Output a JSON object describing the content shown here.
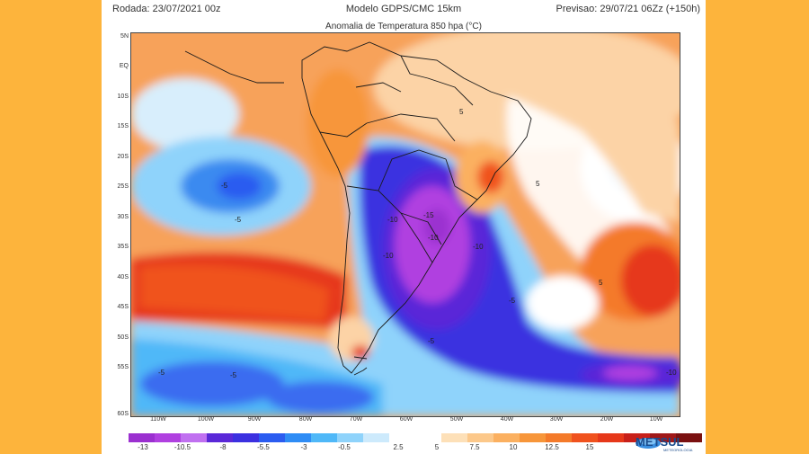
{
  "header": {
    "run": "Rodada: 23/07/2021 00z",
    "model": "Modelo GDPS/CMC 15km",
    "forecast": "Previsao: 29/07/21 06Zz (+150h)",
    "title": "Anomalia de Temperatura 850 hpa (°C)"
  },
  "axes": {
    "lat_labels": [
      "5N",
      "EQ",
      "10S",
      "15S",
      "20S",
      "25S",
      "30S",
      "35S",
      "40S",
      "45S",
      "50S",
      "55S",
      "60S"
    ],
    "lon_labels": [
      "110W",
      "100W",
      "90W",
      "80W",
      "70W",
      "60W",
      "50W",
      "40W",
      "30W",
      "20W",
      "10W"
    ]
  },
  "colorbar": {
    "ticks": [
      "-13",
      "-10.5",
      "-8",
      "-5.5",
      "-3",
      "-0.5",
      "2.5",
      "5",
      "7.5",
      "10",
      "12.5",
      "15"
    ],
    "colors": [
      "#9b30d0",
      "#b040e0",
      "#c070f0",
      "#5a28d8",
      "#3b30e0",
      "#2b5cf0",
      "#2e8cf5",
      "#4fb8f8",
      "#8fd3fb",
      "#cdeafc",
      "#ffffff",
      "#ffffff",
      "#fde0b8",
      "#fcc88a",
      "#fbb060",
      "#f7963a",
      "#f47a2a",
      "#f0521e",
      "#e6381a",
      "#c8201a",
      "#a01818",
      "#7a1010"
    ]
  },
  "contour_labels": [
    "-5",
    "-5",
    "-10",
    "-15",
    "-10",
    "-10",
    "-5",
    "-5",
    "-5",
    "-10",
    "-10",
    "5",
    "5",
    "5",
    "-5"
  ],
  "brand": {
    "name": "METSUL",
    "tagline": "METEOROLOGIA"
  }
}
